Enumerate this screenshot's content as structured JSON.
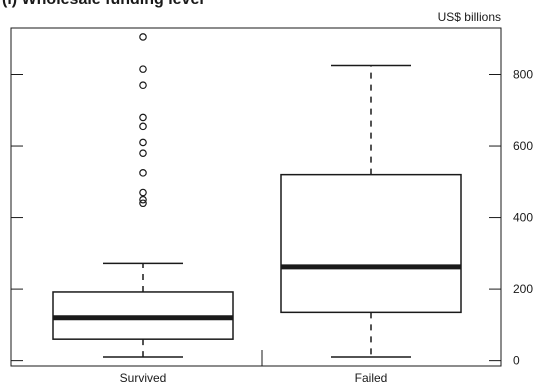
{
  "chart_data": {
    "type": "boxplot",
    "title": "(i) Wholesale funding level",
    "unit_label": "US$ billions",
    "categories": [
      "Survived",
      "Failed"
    ],
    "ylim": [
      -15,
      930
    ],
    "yticks": [
      0,
      200,
      400,
      600,
      800
    ],
    "boxes": [
      {
        "category": "Survived",
        "whisker_low": 10,
        "q1": 60,
        "median": 120,
        "q3": 192,
        "whisker_high": 272,
        "outliers": [
          440,
          450,
          470,
          525,
          580,
          610,
          655,
          680,
          770,
          815,
          905
        ]
      },
      {
        "category": "Failed",
        "whisker_low": 10,
        "q1": 135,
        "median": 262,
        "q3": 520,
        "whisker_high": 825,
        "outliers": []
      }
    ],
    "grid": false,
    "legend": "none"
  }
}
